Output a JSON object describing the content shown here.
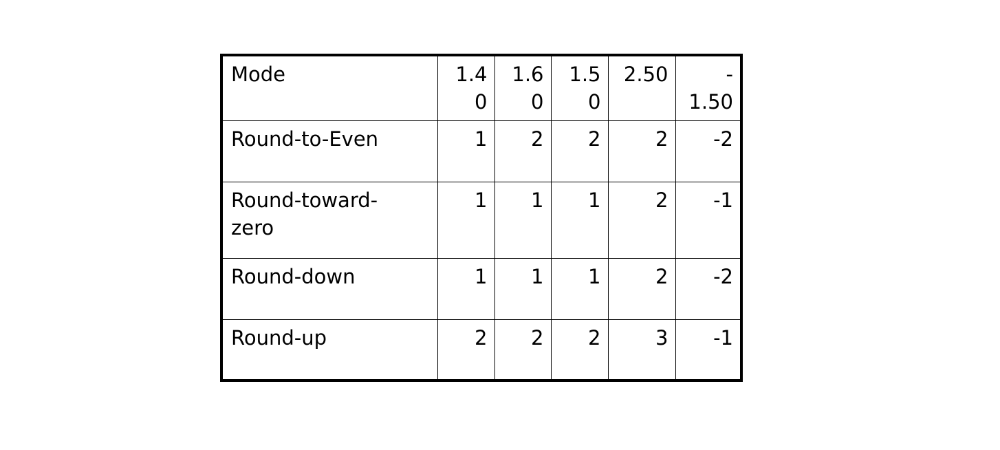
{
  "table": {
    "header": {
      "mode_label": "Mode",
      "columns": [
        {
          "line1": "1.4",
          "line2": "0"
        },
        {
          "line1": "1.6",
          "line2": "0"
        },
        {
          "line1": "1.5",
          "line2": "0"
        },
        {
          "line1": "2.50",
          "line2": ""
        },
        {
          "line1": "-",
          "line2": "1.50"
        }
      ]
    },
    "rows": [
      {
        "mode_line1": "Round-to-Even",
        "mode_line2": "",
        "values": [
          "1",
          "2",
          "2",
          "2",
          "-2"
        ]
      },
      {
        "mode_line1": "Round-toward-",
        "mode_line2": "zero",
        "values": [
          "1",
          "1",
          "1",
          "2",
          "-1"
        ]
      },
      {
        "mode_line1": "Round-down",
        "mode_line2": "",
        "values": [
          "1",
          "1",
          "1",
          "2",
          "-2"
        ]
      },
      {
        "mode_line1": "Round-up",
        "mode_line2": "",
        "values": [
          "2",
          "2",
          "2",
          "3",
          "-1"
        ]
      }
    ]
  }
}
